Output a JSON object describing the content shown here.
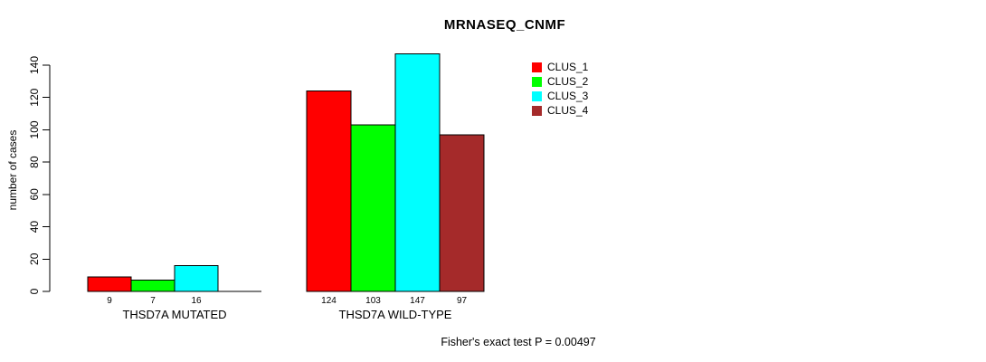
{
  "chart_data": {
    "type": "bar",
    "title": "MRNASEQ_CNMF",
    "ylabel": "number of cases",
    "xlabel": "",
    "ylim": [
      0,
      140
    ],
    "yticks": [
      0,
      20,
      40,
      60,
      80,
      100,
      120,
      140
    ],
    "grid": false,
    "legend_position": "top-right",
    "bar_border_color": "#000000",
    "series": [
      {
        "name": "CLUS_1",
        "color": "#ff0000"
      },
      {
        "name": "CLUS_2",
        "color": "#00ff00"
      },
      {
        "name": "CLUS_3",
        "color": "#00ffff"
      },
      {
        "name": "CLUS_4",
        "color": "#a52a2a"
      }
    ],
    "groups": [
      {
        "label": "THSD7A MUTATED",
        "values": [
          9,
          7,
          16,
          0
        ],
        "bar_labels": [
          "9",
          "7",
          "16",
          ""
        ]
      },
      {
        "label": "THSD7A WILD-TYPE",
        "values": [
          124,
          103,
          147,
          97
        ],
        "bar_labels": [
          "124",
          "103",
          "147",
          "97"
        ]
      }
    ],
    "footer": "Fisher's exact test P = 0.00497"
  }
}
